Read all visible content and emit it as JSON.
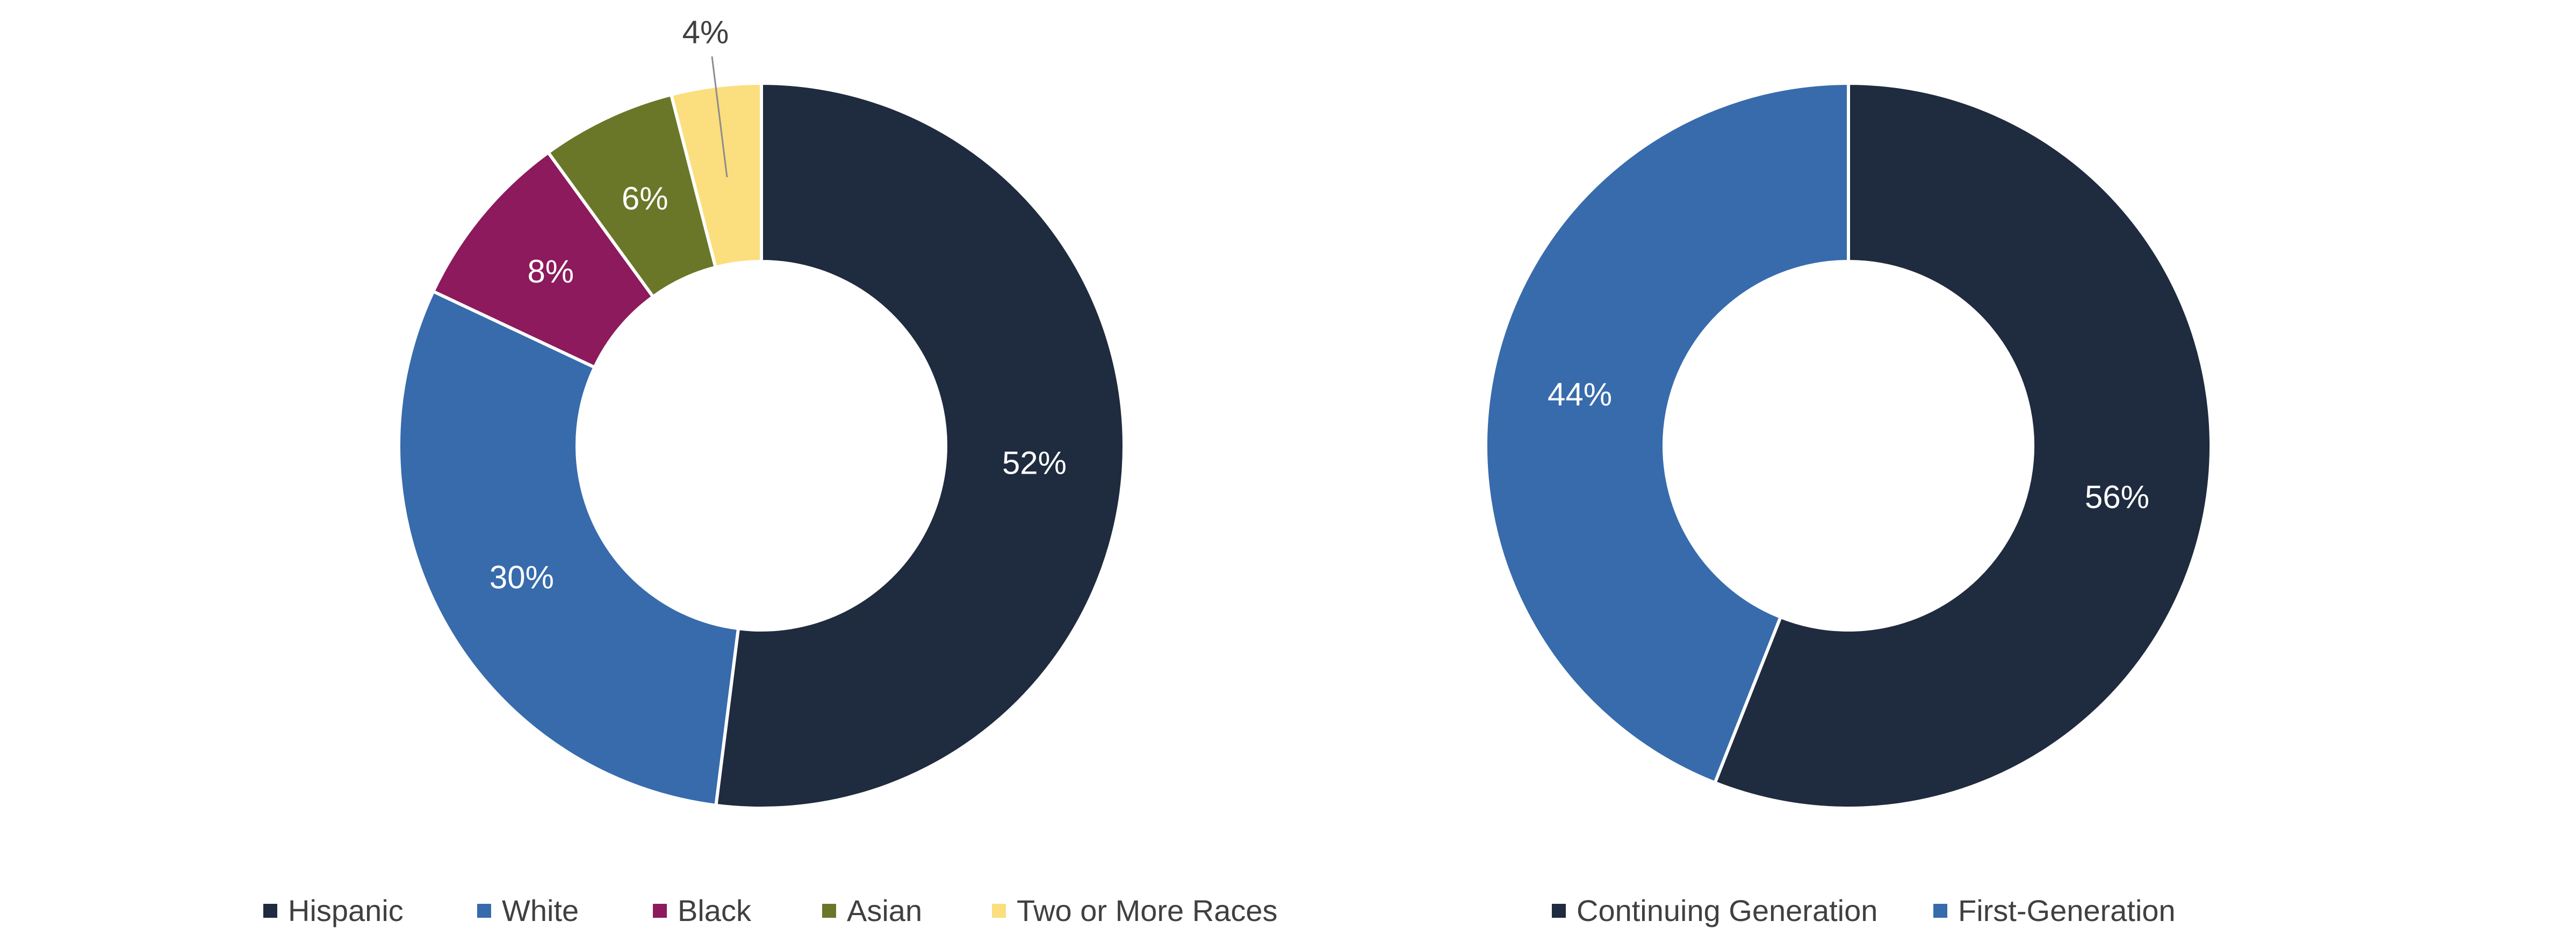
{
  "chart_data": [
    {
      "type": "pie",
      "style": "donut",
      "categories": [
        "Hispanic",
        "White",
        "Black",
        "Asian",
        "Two or More Races"
      ],
      "values": [
        52,
        30,
        8,
        6,
        4
      ],
      "labels": [
        "52%",
        "30%",
        "8%",
        "6%",
        "4%"
      ],
      "colors": [
        "#1f2b3e",
        "#376bac",
        "#8c1a5c",
        "#6a7728",
        "#fbde7e"
      ],
      "label_colors": [
        "#ffffff",
        "#ffffff",
        "#ffffff",
        "#ffffff",
        "#404040"
      ],
      "legend": "bottom"
    },
    {
      "type": "pie",
      "style": "donut",
      "categories": [
        "Continuing Generation",
        "First-Generation"
      ],
      "values": [
        56,
        44
      ],
      "labels": [
        "56%",
        "44%"
      ],
      "colors": [
        "#1f2b3e",
        "#376bac"
      ],
      "label_colors": [
        "#ffffff",
        "#ffffff"
      ],
      "legend": "bottom"
    }
  ]
}
